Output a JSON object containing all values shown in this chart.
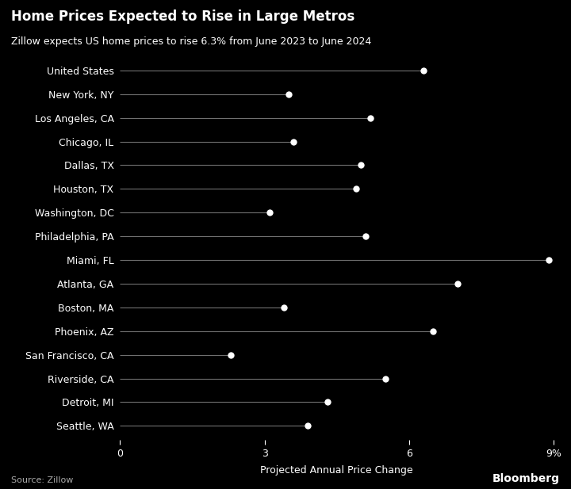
{
  "title": "Home Prices Expected to Rise in Large Metros",
  "subtitle": "Zillow expects US home prices to rise 6.3% from June 2023 to June 2024",
  "xlabel": "Projected Annual Price Change",
  "source": "Source: Zillow",
  "bloomberg": "Bloomberg",
  "background_color": "#000000",
  "text_color": "#ffffff",
  "line_color": "#707070",
  "dot_color": "#ffffff",
  "categories": [
    "United States",
    "New York, NY",
    "Los Angeles, CA",
    "Chicago, IL",
    "Dallas, TX",
    "Houston, TX",
    "Washington, DC",
    "Philadelphia, PA",
    "Miami, FL",
    "Atlanta, GA",
    "Boston, MA",
    "Phoenix, AZ",
    "San Francisco, CA",
    "Riverside, CA",
    "Detroit, MI",
    "Seattle, WA"
  ],
  "values": [
    6.3,
    3.5,
    5.2,
    3.6,
    5.0,
    4.9,
    3.1,
    5.1,
    8.9,
    7.0,
    3.4,
    6.5,
    2.3,
    5.5,
    4.3,
    3.9
  ],
  "xlim": [
    0,
    9
  ],
  "xtick_values": [
    0,
    3,
    6,
    9
  ],
  "xtick_labels": [
    "0",
    "3",
    "6",
    "9%"
  ]
}
